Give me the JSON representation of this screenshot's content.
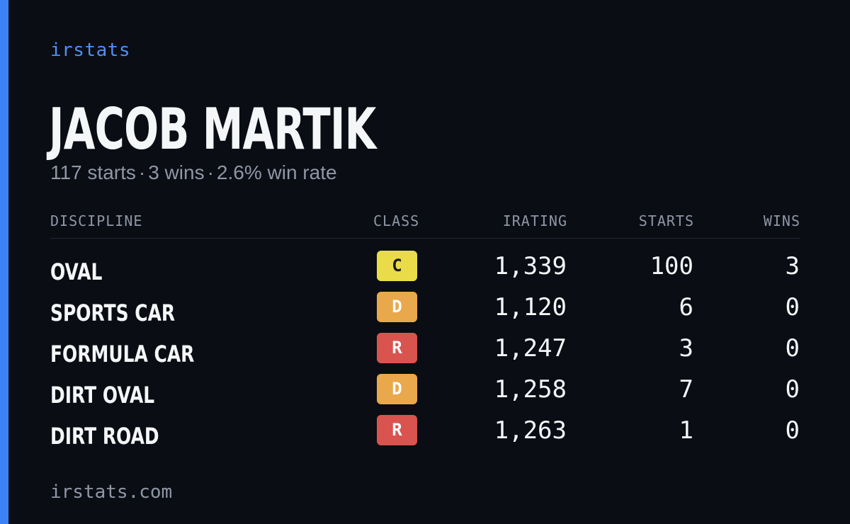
{
  "brand": "irstats",
  "driver": {
    "name": "JACOB MARTIK",
    "summary": {
      "starts": "117 starts",
      "wins": "3 wins",
      "win_rate": "2.6% win rate",
      "separator": "·"
    }
  },
  "table": {
    "headers": {
      "discipline": "DISCIPLINE",
      "class": "CLASS",
      "irating": "IRATING",
      "starts": "STARTS",
      "wins": "WINS"
    },
    "rows": [
      {
        "discipline": "OVAL",
        "class": "C",
        "irating": "1,339",
        "starts": "100",
        "wins": "3"
      },
      {
        "discipline": "SPORTS CAR",
        "class": "D",
        "irating": "1,120",
        "starts": "6",
        "wins": "0"
      },
      {
        "discipline": "FORMULA CAR",
        "class": "R",
        "irating": "1,247",
        "starts": "3",
        "wins": "0"
      },
      {
        "discipline": "DIRT OVAL",
        "class": "D",
        "irating": "1,258",
        "starts": "7",
        "wins": "0"
      },
      {
        "discipline": "DIRT ROAD",
        "class": "R",
        "irating": "1,263",
        "starts": "1",
        "wins": "0"
      }
    ]
  },
  "footer": {
    "url": "irstats.com"
  },
  "colors": {
    "background": "#0a0d14",
    "accent": "#3b82f6",
    "class_C": "#e9dc48",
    "class_D": "#e9a84b",
    "class_R": "#d9534f"
  }
}
